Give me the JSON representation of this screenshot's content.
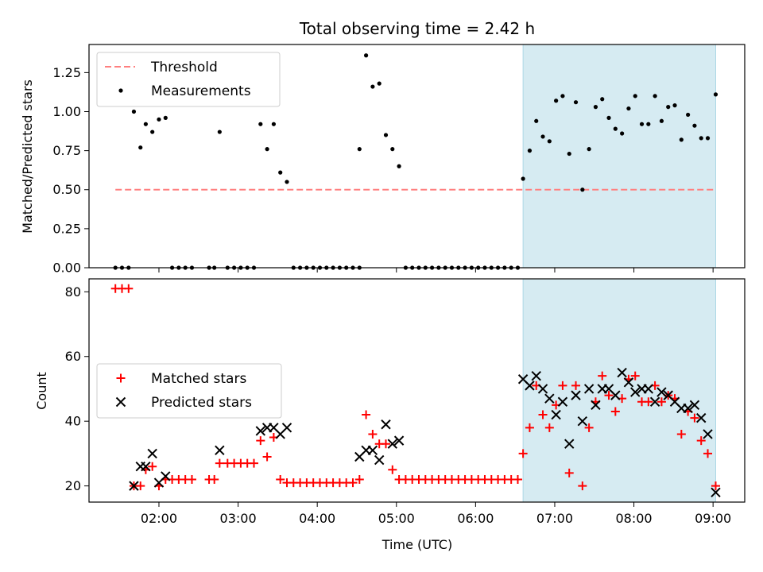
{
  "figure": {
    "title": "Total observing time = 2.42 h",
    "xlabel": "Time (UTC)",
    "x_ticks": [
      "02:00",
      "03:00",
      "04:00",
      "05:00",
      "06:00",
      "07:00",
      "08:00",
      "09:00"
    ],
    "highlight_span_color": "#add8e6"
  },
  "chart_data": [
    {
      "type": "scatter",
      "panel": "top",
      "ylabel": "Matched/Predicted stars",
      "ylim": [
        0,
        1.43
      ],
      "y_ticks": [
        0.0,
        0.25,
        0.5,
        0.75,
        1.0,
        1.25
      ],
      "xlim": [
        "01:07",
        "09:24"
      ],
      "highlight_span": [
        "06:36",
        "09:02"
      ],
      "legend": {
        "placement": "upper-left",
        "entries": [
          "Threshold",
          "Measurements"
        ]
      },
      "threshold": {
        "name": "Threshold",
        "value": 0.5,
        "x_range": [
          "01:27",
          "09:02"
        ],
        "color": "#ff7f7f",
        "style": "dashed"
      },
      "series": [
        {
          "name": "Measurements",
          "marker": "dot",
          "color": "#000000",
          "points": [
            [
              "01:27",
              0
            ],
            [
              "01:32",
              0
            ],
            [
              "01:37",
              0
            ],
            [
              "01:41",
              1.0
            ],
            [
              "01:46",
              0.77
            ],
            [
              "01:50",
              0.92
            ],
            [
              "01:55",
              0.87
            ],
            [
              "02:00",
              0.95
            ],
            [
              "02:05",
              0.96
            ],
            [
              "02:10",
              0
            ],
            [
              "02:15",
              0
            ],
            [
              "02:20",
              0
            ],
            [
              "02:25",
              0
            ],
            [
              "02:38",
              0
            ],
            [
              "02:42",
              0
            ],
            [
              "02:46",
              0.87
            ],
            [
              "02:52",
              0
            ],
            [
              "02:57",
              0
            ],
            [
              "03:02",
              0
            ],
            [
              "03:07",
              0
            ],
            [
              "03:12",
              0
            ],
            [
              "03:17",
              0.92
            ],
            [
              "03:22",
              0.76
            ],
            [
              "03:27",
              0.92
            ],
            [
              "03:32",
              0.61
            ],
            [
              "03:37",
              0.55
            ],
            [
              "03:42",
              0
            ],
            [
              "03:47",
              0
            ],
            [
              "03:52",
              0
            ],
            [
              "03:57",
              0
            ],
            [
              "04:02",
              0
            ],
            [
              "04:07",
              0
            ],
            [
              "04:12",
              0
            ],
            [
              "04:17",
              0
            ],
            [
              "04:22",
              0
            ],
            [
              "04:27",
              0
            ],
            [
              "04:32",
              0
            ],
            [
              "04:32",
              0.76
            ],
            [
              "04:37",
              1.36
            ],
            [
              "04:42",
              1.16
            ],
            [
              "04:47",
              1.18
            ],
            [
              "04:52",
              0.85
            ],
            [
              "04:57",
              0.76
            ],
            [
              "05:02",
              0.65
            ],
            [
              "05:07",
              0
            ],
            [
              "05:12",
              0
            ],
            [
              "05:17",
              0
            ],
            [
              "05:22",
              0
            ],
            [
              "05:27",
              0
            ],
            [
              "05:32",
              0
            ],
            [
              "05:37",
              0
            ],
            [
              "05:42",
              0
            ],
            [
              "05:47",
              0
            ],
            [
              "05:52",
              0
            ],
            [
              "05:57",
              0
            ],
            [
              "06:02",
              0
            ],
            [
              "06:07",
              0
            ],
            [
              "06:12",
              0
            ],
            [
              "06:17",
              0
            ],
            [
              "06:22",
              0
            ],
            [
              "06:27",
              0
            ],
            [
              "06:32",
              0
            ],
            [
              "06:36",
              0.57
            ],
            [
              "06:41",
              0.75
            ],
            [
              "06:46",
              0.94
            ],
            [
              "06:51",
              0.84
            ],
            [
              "06:56",
              0.81
            ],
            [
              "07:01",
              1.07
            ],
            [
              "07:06",
              1.1
            ],
            [
              "07:11",
              0.73
            ],
            [
              "07:16",
              1.06
            ],
            [
              "07:21",
              0.5
            ],
            [
              "07:26",
              0.76
            ],
            [
              "07:31",
              1.03
            ],
            [
              "07:36",
              1.08
            ],
            [
              "07:41",
              0.96
            ],
            [
              "07:46",
              0.89
            ],
            [
              "07:51",
              0.86
            ],
            [
              "07:56",
              1.02
            ],
            [
              "08:01",
              1.1
            ],
            [
              "08:06",
              0.92
            ],
            [
              "08:11",
              0.92
            ],
            [
              "08:16",
              1.1
            ],
            [
              "08:21",
              0.94
            ],
            [
              "08:26",
              1.03
            ],
            [
              "08:31",
              1.04
            ],
            [
              "08:36",
              0.82
            ],
            [
              "08:41",
              0.98
            ],
            [
              "08:46",
              0.91
            ],
            [
              "08:51",
              0.83
            ],
            [
              "08:56",
              0.83
            ],
            [
              "09:02",
              1.11
            ]
          ]
        }
      ]
    },
    {
      "type": "scatter",
      "panel": "bottom",
      "ylabel": "Count",
      "ylim": [
        15,
        84
      ],
      "y_ticks": [
        20,
        40,
        60,
        80
      ],
      "xlim": [
        "01:07",
        "09:24"
      ],
      "highlight_span": [
        "06:36",
        "09:02"
      ],
      "legend": {
        "placement": "center-left",
        "entries": [
          "Matched stars",
          "Predicted stars"
        ]
      },
      "series": [
        {
          "name": "Matched stars",
          "marker": "plus",
          "color": "#ff0000",
          "points": [
            [
              "01:27",
              81
            ],
            [
              "01:32",
              81
            ],
            [
              "01:37",
              81
            ],
            [
              "01:41",
              20
            ],
            [
              "01:46",
              20
            ],
            [
              "01:50",
              25
            ],
            [
              "01:55",
              26
            ],
            [
              "02:00",
              20
            ],
            [
              "02:05",
              22
            ],
            [
              "02:10",
              22
            ],
            [
              "02:15",
              22
            ],
            [
              "02:20",
              22
            ],
            [
              "02:25",
              22
            ],
            [
              "02:38",
              22
            ],
            [
              "02:42",
              22
            ],
            [
              "02:46",
              27
            ],
            [
              "02:52",
              27
            ],
            [
              "02:57",
              27
            ],
            [
              "03:02",
              27
            ],
            [
              "03:07",
              27
            ],
            [
              "03:12",
              27
            ],
            [
              "03:17",
              34
            ],
            [
              "03:22",
              29
            ],
            [
              "03:27",
              35
            ],
            [
              "03:32",
              22
            ],
            [
              "03:37",
              21
            ],
            [
              "03:42",
              21
            ],
            [
              "03:47",
              21
            ],
            [
              "03:52",
              21
            ],
            [
              "03:57",
              21
            ],
            [
              "04:02",
              21
            ],
            [
              "04:07",
              21
            ],
            [
              "04:12",
              21
            ],
            [
              "04:17",
              21
            ],
            [
              "04:22",
              21
            ],
            [
              "04:27",
              21
            ],
            [
              "04:32",
              22
            ],
            [
              "04:37",
              42
            ],
            [
              "04:42",
              36
            ],
            [
              "04:47",
              33
            ],
            [
              "04:52",
              33
            ],
            [
              "04:57",
              25
            ],
            [
              "05:02",
              22
            ],
            [
              "05:07",
              22
            ],
            [
              "05:12",
              22
            ],
            [
              "05:17",
              22
            ],
            [
              "05:22",
              22
            ],
            [
              "05:27",
              22
            ],
            [
              "05:32",
              22
            ],
            [
              "05:37",
              22
            ],
            [
              "05:42",
              22
            ],
            [
              "05:47",
              22
            ],
            [
              "05:52",
              22
            ],
            [
              "05:57",
              22
            ],
            [
              "06:02",
              22
            ],
            [
              "06:07",
              22
            ],
            [
              "06:12",
              22
            ],
            [
              "06:17",
              22
            ],
            [
              "06:22",
              22
            ],
            [
              "06:27",
              22
            ],
            [
              "06:32",
              22
            ],
            [
              "06:36",
              30
            ],
            [
              "06:41",
              38
            ],
            [
              "06:46",
              51
            ],
            [
              "06:51",
              42
            ],
            [
              "06:56",
              38
            ],
            [
              "07:01",
              45
            ],
            [
              "07:06",
              51
            ],
            [
              "07:11",
              24
            ],
            [
              "07:16",
              51
            ],
            [
              "07:21",
              20
            ],
            [
              "07:26",
              38
            ],
            [
              "07:31",
              46
            ],
            [
              "07:36",
              54
            ],
            [
              "07:41",
              48
            ],
            [
              "07:46",
              43
            ],
            [
              "07:51",
              47
            ],
            [
              "07:56",
              53
            ],
            [
              "08:01",
              54
            ],
            [
              "08:06",
              46
            ],
            [
              "08:11",
              46
            ],
            [
              "08:16",
              51
            ],
            [
              "08:21",
              46
            ],
            [
              "08:26",
              48
            ],
            [
              "08:31",
              47
            ],
            [
              "08:36",
              36
            ],
            [
              "08:41",
              43
            ],
            [
              "08:46",
              41
            ],
            [
              "08:51",
              34
            ],
            [
              "08:56",
              30
            ],
            [
              "09:02",
              20
            ]
          ]
        },
        {
          "name": "Predicted stars",
          "marker": "cross",
          "color": "#000000",
          "points": [
            [
              "01:41",
              20
            ],
            [
              "01:46",
              26
            ],
            [
              "01:50",
              26
            ],
            [
              "01:55",
              30
            ],
            [
              "02:00",
              21
            ],
            [
              "02:05",
              23
            ],
            [
              "02:46",
              31
            ],
            [
              "03:17",
              37
            ],
            [
              "03:22",
              38
            ],
            [
              "03:27",
              38
            ],
            [
              "03:32",
              36
            ],
            [
              "03:37",
              38
            ],
            [
              "04:32",
              29
            ],
            [
              "04:37",
              31
            ],
            [
              "04:42",
              31
            ],
            [
              "04:47",
              28
            ],
            [
              "04:52",
              39
            ],
            [
              "04:57",
              33
            ],
            [
              "05:02",
              34
            ],
            [
              "06:36",
              53
            ],
            [
              "06:41",
              51
            ],
            [
              "06:46",
              54
            ],
            [
              "06:51",
              50
            ],
            [
              "06:56",
              47
            ],
            [
              "07:01",
              42
            ],
            [
              "07:06",
              46
            ],
            [
              "07:11",
              33
            ],
            [
              "07:16",
              48
            ],
            [
              "07:21",
              40
            ],
            [
              "07:26",
              50
            ],
            [
              "07:31",
              45
            ],
            [
              "07:36",
              50
            ],
            [
              "07:41",
              50
            ],
            [
              "07:46",
              48
            ],
            [
              "07:51",
              55
            ],
            [
              "07:56",
              52
            ],
            [
              "08:01",
              49
            ],
            [
              "08:06",
              50
            ],
            [
              "08:11",
              50
            ],
            [
              "08:16",
              46
            ],
            [
              "08:21",
              49
            ],
            [
              "08:26",
              48
            ],
            [
              "08:31",
              46
            ],
            [
              "08:36",
              44
            ],
            [
              "08:41",
              44
            ],
            [
              "08:46",
              45
            ],
            [
              "08:51",
              41
            ],
            [
              "08:56",
              36
            ],
            [
              "09:02",
              18
            ]
          ]
        }
      ]
    }
  ]
}
